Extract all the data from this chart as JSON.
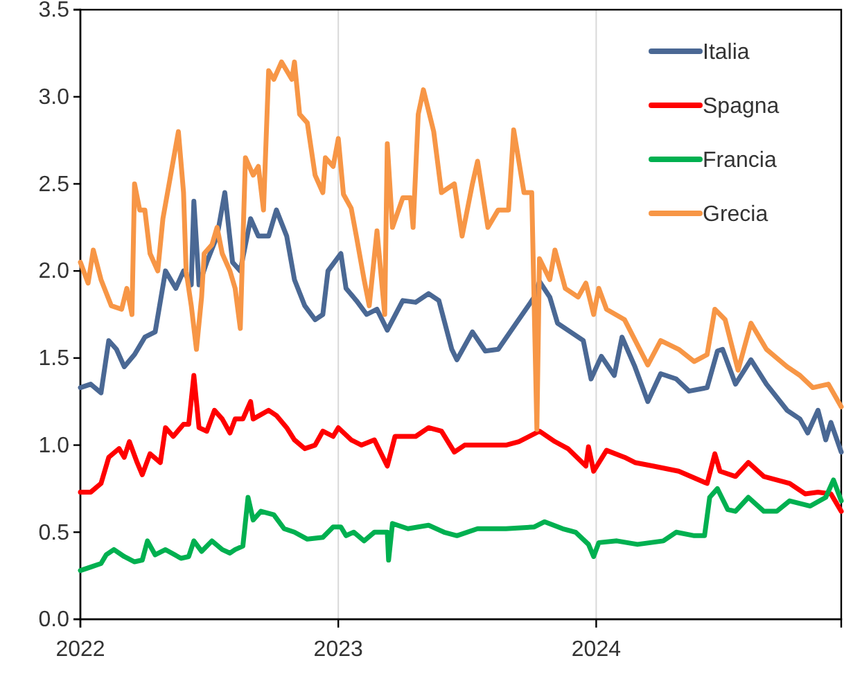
{
  "chart_data": {
    "type": "line",
    "xlim": [
      2022,
      2024.95
    ],
    "xticks": [
      2022,
      2023,
      2024
    ],
    "ylim": [
      0,
      3.5
    ],
    "yticks": [
      {
        "value": 0,
        "label": "0.0"
      },
      0.5,
      {
        "value": 1,
        "label": "1.0"
      },
      1.5,
      {
        "value": 2,
        "label": "2.0"
      },
      2.5,
      {
        "value": 3,
        "label": "3.0"
      },
      3.5
    ],
    "grid": "x",
    "legend": "top right",
    "line_style": "solid",
    "series": [
      {
        "name": "Italia",
        "color": "#4a6894",
        "x": [
          2022.0,
          2022.04,
          2022.08,
          2022.11,
          2022.14,
          2022.17,
          2022.21,
          2022.25,
          2022.29,
          2022.33,
          2022.37,
          2022.4,
          2022.43,
          2022.44,
          2022.46,
          2022.49,
          2022.53,
          2022.56,
          2022.59,
          2022.62,
          2022.66,
          2022.69,
          2022.73,
          2022.76,
          2022.8,
          2022.83,
          2022.87,
          2022.91,
          2022.94,
          2022.96,
          2023.01,
          2023.03,
          2023.07,
          2023.11,
          2023.15,
          2023.19,
          2023.25,
          2023.3,
          2023.35,
          2023.39,
          2023.44,
          2023.46,
          2023.52,
          2023.57,
          2023.62,
          2023.69,
          2023.76,
          2023.78,
          2023.82,
          2023.85,
          2023.9,
          2023.95,
          2023.98,
          2024.02,
          2024.07,
          2024.1,
          2024.15,
          2024.2,
          2024.25,
          2024.31,
          2024.36,
          2024.43,
          2024.47,
          2024.49,
          2024.54,
          2024.6,
          2024.66,
          2024.74,
          2024.79,
          2024.82,
          2024.86,
          2024.89,
          2024.91,
          2024.95
        ],
        "values": [
          1.33,
          1.35,
          1.3,
          1.6,
          1.55,
          1.45,
          1.52,
          1.62,
          1.65,
          2.0,
          1.9,
          2.0,
          1.92,
          2.4,
          1.92,
          2.05,
          2.2,
          2.45,
          2.05,
          2.0,
          2.3,
          2.2,
          2.2,
          2.35,
          2.2,
          1.95,
          1.8,
          1.72,
          1.75,
          2.0,
          2.1,
          1.9,
          1.83,
          1.75,
          1.78,
          1.66,
          1.83,
          1.82,
          1.87,
          1.83,
          1.55,
          1.49,
          1.65,
          1.54,
          1.55,
          1.7,
          1.85,
          1.94,
          1.85,
          1.7,
          1.65,
          1.6,
          1.38,
          1.51,
          1.4,
          1.62,
          1.45,
          1.25,
          1.41,
          1.38,
          1.31,
          1.33,
          1.54,
          1.55,
          1.35,
          1.49,
          1.35,
          1.2,
          1.15,
          1.07,
          1.2,
          1.03,
          1.13,
          0.96
        ]
      },
      {
        "name": "Spagna",
        "color": "#ff0000",
        "x": [
          2022.0,
          2022.04,
          2022.08,
          2022.11,
          2022.15,
          2022.17,
          2022.19,
          2022.22,
          2022.24,
          2022.27,
          2022.31,
          2022.33,
          2022.36,
          2022.4,
          2022.42,
          2022.44,
          2022.46,
          2022.49,
          2022.52,
          2022.55,
          2022.58,
          2022.6,
          2022.63,
          2022.66,
          2022.67,
          2022.73,
          2022.76,
          2022.8,
          2022.83,
          2022.87,
          2022.91,
          2022.94,
          2022.98,
          2023.0,
          2023.05,
          2023.09,
          2023.14,
          2023.19,
          2023.22,
          2023.3,
          2023.35,
          2023.4,
          2023.45,
          2023.49,
          2023.57,
          2023.65,
          2023.7,
          2023.78,
          2023.84,
          2023.89,
          2023.96,
          2023.97,
          2023.99,
          2024.04,
          2024.11,
          2024.15,
          2024.22,
          2024.32,
          2024.43,
          2024.46,
          2024.48,
          2024.54,
          2024.59,
          2024.65,
          2024.75,
          2024.81,
          2024.86,
          2024.91,
          2024.95
        ],
        "values": [
          0.73,
          0.73,
          0.78,
          0.93,
          0.98,
          0.93,
          1.02,
          0.9,
          0.83,
          0.95,
          0.9,
          1.1,
          1.05,
          1.12,
          1.12,
          1.4,
          1.1,
          1.08,
          1.2,
          1.15,
          1.07,
          1.15,
          1.15,
          1.25,
          1.15,
          1.2,
          1.17,
          1.1,
          1.03,
          0.98,
          1.0,
          1.08,
          1.05,
          1.1,
          1.03,
          1.0,
          1.03,
          0.88,
          1.05,
          1.05,
          1.1,
          1.08,
          0.96,
          1.0,
          1.0,
          1.0,
          1.02,
          1.08,
          1.02,
          0.98,
          0.88,
          0.99,
          0.85,
          0.97,
          0.93,
          0.9,
          0.88,
          0.85,
          0.78,
          0.95,
          0.85,
          0.82,
          0.9,
          0.82,
          0.78,
          0.72,
          0.73,
          0.72,
          0.62
        ]
      },
      {
        "name": "Francia",
        "color": "#00b050",
        "x": [
          2022.0,
          2022.04,
          2022.08,
          2022.1,
          2022.13,
          2022.17,
          2022.21,
          2022.24,
          2022.26,
          2022.29,
          2022.33,
          2022.39,
          2022.42,
          2022.44,
          2022.47,
          2022.51,
          2022.55,
          2022.58,
          2022.6,
          2022.63,
          2022.65,
          2022.67,
          2022.7,
          2022.75,
          2022.79,
          2022.83,
          2022.88,
          2022.94,
          2022.98,
          2023.01,
          2023.03,
          2023.06,
          2023.1,
          2023.14,
          2023.19,
          2023.195,
          2023.21,
          2023.27,
          2023.35,
          2023.41,
          2023.46,
          2023.54,
          2023.65,
          2023.76,
          2023.8,
          2023.87,
          2023.92,
          2023.97,
          2023.99,
          2024.01,
          2024.08,
          2024.16,
          2024.26,
          2024.31,
          2024.38,
          2024.42,
          2024.44,
          2024.47,
          2024.51,
          2024.54,
          2024.59,
          2024.65,
          2024.7,
          2024.75,
          2024.83,
          2024.89,
          2024.92,
          2024.95
        ],
        "values": [
          0.28,
          0.3,
          0.32,
          0.37,
          0.4,
          0.36,
          0.33,
          0.34,
          0.45,
          0.37,
          0.4,
          0.35,
          0.36,
          0.45,
          0.39,
          0.45,
          0.4,
          0.38,
          0.4,
          0.42,
          0.7,
          0.57,
          0.62,
          0.6,
          0.52,
          0.5,
          0.46,
          0.47,
          0.53,
          0.53,
          0.48,
          0.5,
          0.45,
          0.5,
          0.5,
          0.34,
          0.55,
          0.52,
          0.54,
          0.5,
          0.48,
          0.52,
          0.52,
          0.53,
          0.56,
          0.52,
          0.5,
          0.43,
          0.36,
          0.44,
          0.45,
          0.43,
          0.45,
          0.5,
          0.48,
          0.48,
          0.7,
          0.75,
          0.63,
          0.62,
          0.7,
          0.62,
          0.62,
          0.68,
          0.65,
          0.7,
          0.8,
          0.68
        ]
      },
      {
        "name": "Grecia",
        "color": "#f79646",
        "x": [
          2022.0,
          2022.03,
          2022.05,
          2022.08,
          2022.12,
          2022.16,
          2022.18,
          2022.2,
          2022.21,
          2022.23,
          2022.25,
          2022.27,
          2022.3,
          2022.32,
          2022.35,
          2022.38,
          2022.4,
          2022.41,
          2022.43,
          2022.45,
          2022.47,
          2022.48,
          2022.51,
          2022.53,
          2022.55,
          2022.58,
          2022.6,
          2022.62,
          2022.64,
          2022.67,
          2022.69,
          2022.71,
          2022.73,
          2022.75,
          2022.78,
          2022.82,
          2022.83,
          2022.85,
          2022.88,
          2022.91,
          2022.94,
          2022.95,
          2022.98,
          2023.0,
          2023.02,
          2023.05,
          2023.07,
          2023.1,
          2023.12,
          2023.15,
          2023.18,
          2023.19,
          2023.21,
          2023.25,
          2023.28,
          2023.29,
          2023.31,
          2023.33,
          2023.37,
          2023.4,
          2023.45,
          2023.48,
          2023.52,
          2023.54,
          2023.58,
          2023.62,
          2023.66,
          2023.68,
          2023.72,
          2023.75,
          2023.77,
          2023.78,
          2023.82,
          2023.84,
          2023.88,
          2023.93,
          2023.96,
          2023.99,
          2024.01,
          2024.04,
          2024.11,
          2024.2,
          2024.25,
          2024.32,
          2024.38,
          2024.43,
          2024.46,
          2024.5,
          2024.55,
          2024.6,
          2024.66,
          2024.74,
          2024.79,
          2024.84,
          2024.9,
          2024.95
        ],
        "values": [
          2.05,
          1.93,
          2.12,
          1.95,
          1.8,
          1.78,
          1.9,
          1.75,
          2.5,
          2.35,
          2.35,
          2.1,
          2.0,
          2.3,
          2.55,
          2.8,
          2.45,
          2.0,
          1.8,
          1.55,
          1.85,
          2.1,
          2.15,
          2.25,
          2.1,
          2.0,
          1.9,
          1.67,
          2.65,
          2.55,
          2.6,
          2.35,
          3.15,
          3.1,
          3.2,
          3.1,
          3.2,
          2.9,
          2.85,
          2.55,
          2.45,
          2.65,
          2.6,
          2.76,
          2.44,
          2.36,
          2.2,
          1.95,
          1.8,
          2.23,
          1.75,
          2.73,
          2.25,
          2.42,
          2.42,
          2.25,
          2.9,
          3.04,
          2.8,
          2.45,
          2.5,
          2.2,
          2.5,
          2.63,
          2.25,
          2.35,
          2.35,
          2.81,
          2.45,
          2.45,
          1.09,
          2.07,
          1.95,
          2.12,
          1.9,
          1.85,
          1.93,
          1.75,
          1.9,
          1.78,
          1.72,
          1.46,
          1.6,
          1.55,
          1.48,
          1.52,
          1.78,
          1.72,
          1.43,
          1.7,
          1.55,
          1.45,
          1.4,
          1.33,
          1.35,
          1.22
        ]
      }
    ]
  }
}
